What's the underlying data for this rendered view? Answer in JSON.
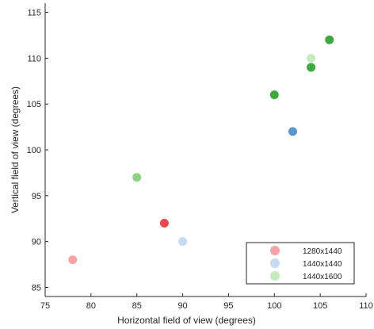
{
  "chart_data": {
    "type": "scatter",
    "title": "",
    "xlabel": "Horizontal field of view (degrees)",
    "ylabel": "Vertical field of view (degrees)",
    "xlim": [
      75,
      110
    ],
    "ylim": [
      84,
      116
    ],
    "xticks": [
      75,
      80,
      85,
      90,
      95,
      100,
      105,
      110
    ],
    "yticks": [
      85,
      90,
      95,
      100,
      105,
      110,
      115
    ],
    "grid": false,
    "legend": {
      "placement": "bottom-right",
      "entries": [
        {
          "label": "1280x1440",
          "color": "#f4a3a6"
        },
        {
          "label": "1440x1440",
          "color": "#c6dbef"
        },
        {
          "label": "1440x1600",
          "color": "#c7e9c0"
        }
      ]
    },
    "points": [
      {
        "x": 78,
        "y": 88,
        "color": "#f4a3a6"
      },
      {
        "x": 88,
        "y": 92,
        "color": "#e34a4f"
      },
      {
        "x": 90,
        "y": 90,
        "color": "#c6dbef"
      },
      {
        "x": 85,
        "y": 97,
        "color": "#8fd08a"
      },
      {
        "x": 100,
        "y": 106,
        "color": "#3fa83f"
      },
      {
        "x": 102,
        "y": 102,
        "color": "#5b97cc"
      },
      {
        "x": 104,
        "y": 109,
        "color": "#3fa83f"
      },
      {
        "x": 104,
        "y": 110,
        "color": "#c7e9c0"
      },
      {
        "x": 106,
        "y": 112,
        "color": "#3fa83f"
      }
    ]
  }
}
